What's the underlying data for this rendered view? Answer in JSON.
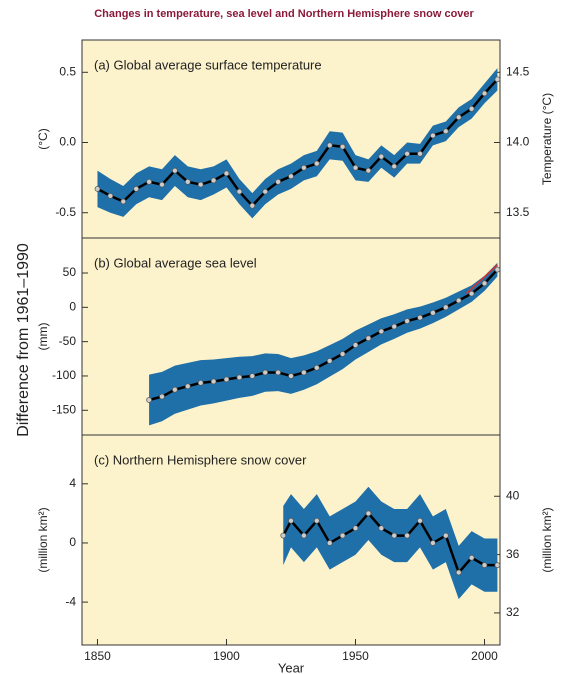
{
  "title": "Changes in temperature, sea level and Northern Hemisphere snow cover",
  "y_label": "Difference from 1961–1990",
  "chart_data": [
    {
      "type": "line",
      "title": "(a) Global average surface temperature",
      "y_label": "(°C)",
      "y2_label": "Temperature (°C)",
      "x": [
        1850,
        1855,
        1860,
        1865,
        1870,
        1875,
        1880,
        1885,
        1890,
        1895,
        1900,
        1905,
        1910,
        1915,
        1920,
        1925,
        1930,
        1935,
        1940,
        1945,
        1950,
        1955,
        1960,
        1965,
        1970,
        1975,
        1980,
        1985,
        1990,
        1995,
        2000,
        2005
      ],
      "values": [
        -0.33,
        -0.38,
        -0.42,
        -0.33,
        -0.28,
        -0.3,
        -0.2,
        -0.28,
        -0.3,
        -0.27,
        -0.22,
        -0.35,
        -0.45,
        -0.35,
        -0.28,
        -0.24,
        -0.18,
        -0.15,
        -0.02,
        -0.03,
        -0.18,
        -0.2,
        -0.1,
        -0.17,
        -0.08,
        -0.08,
        0.05,
        0.08,
        0.18,
        0.24,
        0.35,
        0.45
      ],
      "lower": [
        -0.46,
        -0.5,
        -0.53,
        -0.44,
        -0.39,
        -0.41,
        -0.31,
        -0.39,
        -0.41,
        -0.37,
        -0.32,
        -0.44,
        -0.54,
        -0.44,
        -0.37,
        -0.33,
        -0.27,
        -0.24,
        -0.12,
        -0.13,
        -0.27,
        -0.28,
        -0.18,
        -0.25,
        -0.15,
        -0.15,
        -0.02,
        0.01,
        0.11,
        0.17,
        0.28,
        0.37
      ],
      "upper": [
        -0.2,
        -0.26,
        -0.31,
        -0.22,
        -0.17,
        -0.19,
        -0.09,
        -0.17,
        -0.19,
        -0.17,
        -0.12,
        -0.26,
        -0.36,
        -0.26,
        -0.19,
        -0.15,
        -0.09,
        -0.06,
        0.08,
        0.07,
        -0.09,
        -0.12,
        -0.02,
        -0.09,
        0,
        -0.01,
        0.12,
        0.15,
        0.25,
        0.31,
        0.42,
        0.53
      ],
      "color": "#000000",
      "band_color": "#1f6fa8",
      "xlim": [
        1844,
        2006
      ],
      "ylim": [
        -0.68,
        0.73
      ],
      "yticks": [
        -0.5,
        {
          "value": 0,
          "label": "0.0"
        },
        0.5
      ],
      "y2lim": [
        13.32,
        14.73
      ],
      "y2ticks": [
        {
          "value": 13.5,
          "label": "13.5"
        },
        {
          "value": 14,
          "label": "14.0"
        },
        {
          "value": 14.5,
          "label": "14.5"
        }
      ]
    },
    {
      "type": "line",
      "title": "(b) Global average sea level",
      "y_label": "(mm)",
      "x": [
        1870,
        1875,
        1880,
        1885,
        1890,
        1895,
        1900,
        1905,
        1910,
        1915,
        1920,
        1925,
        1930,
        1935,
        1940,
        1945,
        1950,
        1955,
        1960,
        1965,
        1970,
        1975,
        1980,
        1985,
        1990,
        1995,
        2000,
        2005
      ],
      "values": [
        -135,
        -130,
        -120,
        -115,
        -110,
        -108,
        -105,
        -102,
        -100,
        -95,
        -95,
        -100,
        -95,
        -88,
        -78,
        -68,
        -55,
        -45,
        -35,
        -28,
        -20,
        -15,
        -8,
        0,
        10,
        20,
        35,
        55
      ],
      "lower": [
        -172,
        -166,
        -155,
        -149,
        -143,
        -140,
        -136,
        -132,
        -129,
        -123,
        -122,
        -126,
        -120,
        -112,
        -101,
        -90,
        -76,
        -65,
        -54,
        -46,
        -37,
        -31,
        -23,
        -14,
        -3,
        8,
        24,
        45
      ],
      "upper": [
        -98,
        -94,
        -85,
        -81,
        -77,
        -76,
        -74,
        -72,
        -71,
        -67,
        -68,
        -74,
        -70,
        -64,
        -55,
        -46,
        -34,
        -25,
        -16,
        -10,
        -3,
        1,
        7,
        14,
        23,
        32,
        46,
        65
      ],
      "satellite": {
        "x": [
          1993,
          2005
        ],
        "values": [
          20,
          62
        ],
        "color": "#d9302c"
      },
      "color": "#000000",
      "band_color": "#1f6fa8",
      "xlim": [
        1844,
        2006
      ],
      "ylim": [
        -186,
        101
      ],
      "yticks": [
        -150,
        -100,
        -50,
        0,
        50
      ]
    },
    {
      "type": "line",
      "title": "(c) Northern Hemisphere snow cover",
      "y_label": "(million km²)",
      "y2_label": "(million km²)",
      "x_label": "Year",
      "x": [
        1922,
        1925,
        1930,
        1935,
        1940,
        1945,
        1950,
        1955,
        1960,
        1965,
        1970,
        1975,
        1980,
        1985,
        1990,
        1995,
        2000,
        2005
      ],
      "values": [
        0.5,
        1.5,
        0.5,
        1.5,
        0,
        0.5,
        1,
        2,
        1,
        0.5,
        0.5,
        1.5,
        0,
        0.5,
        -2,
        -1,
        -1.5,
        -1.5
      ],
      "lower": [
        -1.5,
        -0.3,
        -1.3,
        -0.3,
        -1.8,
        -1.3,
        -0.8,
        0.2,
        -0.8,
        -1.3,
        -1.3,
        -0.3,
        -1.8,
        -1.3,
        -3.8,
        -2.8,
        -3.3,
        -3.3
      ],
      "upper": [
        2.5,
        3.3,
        2.3,
        3.3,
        1.8,
        2.3,
        2.8,
        3.8,
        2.8,
        2.3,
        2.3,
        3.3,
        1.8,
        2.3,
        -0.2,
        0.8,
        0.3,
        0.3
      ],
      "color": "#000000",
      "band_color": "#1f6fa8",
      "xlim": [
        1844,
        2006
      ],
      "ylim": [
        -6.9,
        7.3
      ],
      "yticks": [
        -4,
        0,
        4
      ],
      "y2lim": [
        29.8,
        44.2
      ],
      "y2ticks": [
        32,
        36,
        40
      ],
      "xticks": [
        1850,
        1900,
        1950,
        2000
      ]
    }
  ]
}
